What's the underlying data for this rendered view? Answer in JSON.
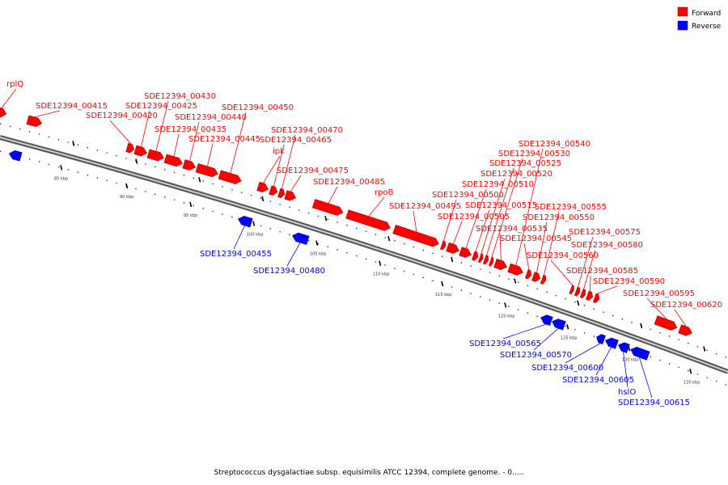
{
  "legend": {
    "forward_label": "Forward",
    "reverse_label": "Reverse",
    "forward_color": "#ff0000",
    "reverse_color": "#0000ff"
  },
  "caption": "Streptococcus dysgalactiae subsp. equisimilis ATCC 12394, complete genome. - 0.....",
  "scale_labels": [
    "85 kbp",
    "90 kbp",
    "95 kbp",
    "100 kbp",
    "105 kbp",
    "110 kbp",
    "115 kbp",
    "120 kbp",
    "125 kbp",
    "130 kbp",
    "135 kbp"
  ],
  "forward_genes": [
    "rplQ",
    "SDE12394_00415",
    "SDE12394_00420",
    "SDE12394_00425",
    "SDE12394_00430",
    "SDE12394_00435",
    "SDE12394_00440",
    "SDE12394_00445",
    "SDE12394_00450",
    "ipk",
    "SDE12394_00465",
    "SDE12394_00470",
    "SDE12394_00475",
    "SDE12394_00485",
    "rpoB",
    "SDE12394_00495",
    "SDE12394_00500",
    "SDE12394_00505",
    "SDE12394_00510",
    "SDE12394_00515",
    "SDE12394_00520",
    "SDE12394_00525",
    "SDE12394_00530",
    "SDE12394_00535",
    "SDE12394_00540",
    "SDE12394_00545",
    "SDE12394_00550",
    "SDE12394_00555",
    "SDE12394_00560",
    "SDE12394_00575",
    "SDE12394_00580",
    "SDE12394_00585",
    "SDE12394_00590",
    "SDE12394_00595",
    "SDE12394_00620"
  ],
  "reverse_genes": [
    "SDE12394_00455",
    "SDE12394_00480",
    "SDE12394_00565",
    "SDE12394_00570",
    "SDE12394_00600",
    "SDE12394_00605",
    "hslO",
    "SDE12394_00615"
  ]
}
